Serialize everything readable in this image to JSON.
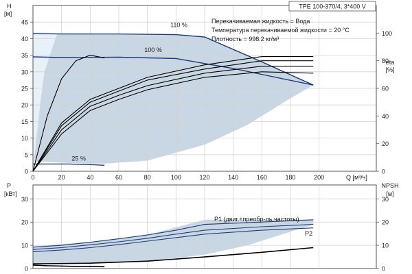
{
  "chart_data": [
    {
      "type": "line",
      "panel": "pump-curve",
      "title": "TPE 100-370/4, 3*400 V",
      "xlabel": "Q [м³/ч]",
      "ylabel_left": "H",
      "ylabel_left_unit": "[м]",
      "ylabel_right": "eta",
      "ylabel_right_unit": "[%]",
      "xlim": [
        0,
        240
      ],
      "ylim_left": [
        0,
        50
      ],
      "ylim_right": [
        0,
        120
      ],
      "x_ticks": [
        "0",
        "20",
        "40",
        "60",
        "80",
        "100",
        "120",
        "140",
        "160",
        "180",
        "200"
      ],
      "y_left_ticks": [
        "0",
        "5",
        "10",
        "15",
        "20",
        "25",
        "30",
        "35",
        "40",
        "45"
      ],
      "y_right_ticks": [
        "0",
        "20",
        "40",
        "60",
        "80",
        "100"
      ],
      "grid": true,
      "info_text": [
        "Перекачиваемая жидкость = Вода",
        "Температура перекачиваемой жидкости = 20 °C",
        "Плотность = 998.2 кг/м³"
      ],
      "operating_area": {
        "color": "#c9d6e3",
        "upper": [
          [
            0,
            42
          ],
          [
            20,
            41.6
          ],
          [
            60,
            41.5
          ],
          [
            100,
            41.4
          ],
          [
            120,
            40.5
          ],
          [
            160,
            33
          ],
          [
            196,
            26
          ]
        ],
        "lower": [
          [
            196,
            26
          ],
          [
            180,
            22
          ],
          [
            150,
            14
          ],
          [
            120,
            8
          ],
          [
            80,
            3.2
          ],
          [
            50,
            2.3
          ],
          [
            30,
            2.4
          ],
          [
            10,
            2.8
          ],
          [
            0,
            3
          ]
        ]
      },
      "highlight_area": {
        "color": "#e8f1fa",
        "points": [
          [
            0,
            42
          ],
          [
            17,
            41.6
          ],
          [
            8,
            30
          ],
          [
            5,
            20
          ],
          [
            0,
            0
          ]
        ]
      },
      "series": [
        {
          "name": "110 %",
          "axis": "left",
          "color": "#1f3d7a",
          "x": [
            0,
            20,
            60,
            100,
            120,
            160,
            196
          ],
          "y": [
            41.5,
            41.4,
            41.4,
            41.2,
            40.5,
            33,
            26
          ]
        },
        {
          "name": "100 %",
          "axis": "left",
          "color": "#1f3d7a",
          "x": [
            0,
            20,
            60,
            100,
            140,
            196
          ],
          "y": [
            34.5,
            34.3,
            34.4,
            34,
            31,
            26
          ]
        },
        {
          "name": "25 %",
          "axis": "left",
          "color": "#1f3d7a",
          "x": [
            0,
            10,
            25,
            40,
            50
          ],
          "y": [
            2.2,
            2.2,
            2.2,
            2,
            1.8
          ]
        },
        {
          "name": "",
          "axis": "right",
          "color": "#000000",
          "x": [
            0,
            10,
            20,
            30,
            40,
            50
          ],
          "y": [
            0,
            40,
            67,
            80,
            84,
            82
          ]
        },
        {
          "name": "",
          "axis": "right",
          "color": "#000000",
          "x": [
            0,
            20,
            40,
            60,
            80,
            120,
            160,
            196
          ],
          "y": [
            0,
            35,
            52,
            60,
            68,
            77,
            83,
            83
          ]
        },
        {
          "name": "",
          "axis": "right",
          "color": "#000000",
          "x": [
            0,
            20,
            40,
            60,
            80,
            120,
            160,
            196
          ],
          "y": [
            0,
            33,
            50,
            58,
            66,
            74,
            80,
            80
          ]
        },
        {
          "name": "",
          "axis": "right",
          "color": "#000000",
          "x": [
            0,
            20,
            40,
            60,
            80,
            120,
            160,
            196
          ],
          "y": [
            0,
            30,
            47,
            55,
            62,
            71,
            76,
            76
          ]
        },
        {
          "name": "",
          "axis": "right",
          "color": "#000000",
          "x": [
            0,
            20,
            40,
            60,
            80,
            120,
            160,
            196
          ],
          "y": [
            0,
            27,
            44,
            52,
            59,
            68,
            72,
            71
          ]
        }
      ],
      "annotations": [
        "110 %",
        "100 %",
        "25 %"
      ]
    },
    {
      "type": "line",
      "panel": "power-npsh",
      "ylabel_left": "P",
      "ylabel_left_unit": "[кВт]",
      "ylabel_right": "NPSH",
      "ylabel_right_unit": "[м]",
      "xlim": [
        0,
        240
      ],
      "ylim_left": [
        0,
        36
      ],
      "ylim_right": [
        0,
        36
      ],
      "y_left_ticks": [
        "0",
        "10",
        "20",
        "30"
      ],
      "y_right_ticks": [
        "0",
        "10",
        "20",
        "30"
      ],
      "grid": true,
      "operating_area": {
        "color": "#c9d6e3",
        "upper": [
          [
            0,
            9.5
          ],
          [
            40,
            11.5
          ],
          [
            80,
            14.5
          ],
          [
            120,
            21
          ],
          [
            196,
            21
          ]
        ],
        "lower": [
          [
            196,
            19
          ],
          [
            150,
            10
          ],
          [
            120,
            6
          ],
          [
            80,
            3
          ],
          [
            40,
            2.2
          ],
          [
            0,
            2
          ]
        ]
      },
      "series": [
        {
          "name": "P1 (двиг.+преобр-ль частоты)",
          "axis": "left",
          "color": "#1f3d7a",
          "x": [
            0,
            20,
            40,
            60,
            80,
            100,
            120,
            160,
            196
          ],
          "y": [
            9.2,
            10,
            11.3,
            12.8,
            14.5,
            16.5,
            19,
            20,
            21
          ]
        },
        {
          "name": "P2",
          "axis": "left",
          "color": "#1f3d7a",
          "x": [
            0,
            20,
            40,
            60,
            80,
            100,
            120,
            160,
            196
          ],
          "y": [
            8.2,
            9,
            10.2,
            11.5,
            13,
            14.8,
            16.5,
            18,
            19
          ]
        },
        {
          "name": "",
          "axis": "left",
          "color": "#1f3d7a",
          "x": [
            0,
            20,
            40,
            60,
            80,
            100,
            120,
            160,
            196
          ],
          "y": [
            7.2,
            8,
            9,
            10.3,
            11.8,
            13.3,
            14.8,
            16.5,
            17.5
          ]
        },
        {
          "name": "",
          "axis": "left",
          "color": "#1f3d7a",
          "x": [
            0,
            10,
            30,
            50
          ],
          "y": [
            1.5,
            1.2,
            0.9,
            0.8
          ]
        },
        {
          "name": "",
          "axis": "right",
          "color": "#000000",
          "x": [
            0,
            40,
            80,
            120,
            160,
            196
          ],
          "y": [
            2,
            2.3,
            3.2,
            5,
            7,
            9
          ]
        }
      ],
      "annotations": [
        "P1 (двиг.+преобр-ль частоты)",
        "P2"
      ]
    }
  ]
}
